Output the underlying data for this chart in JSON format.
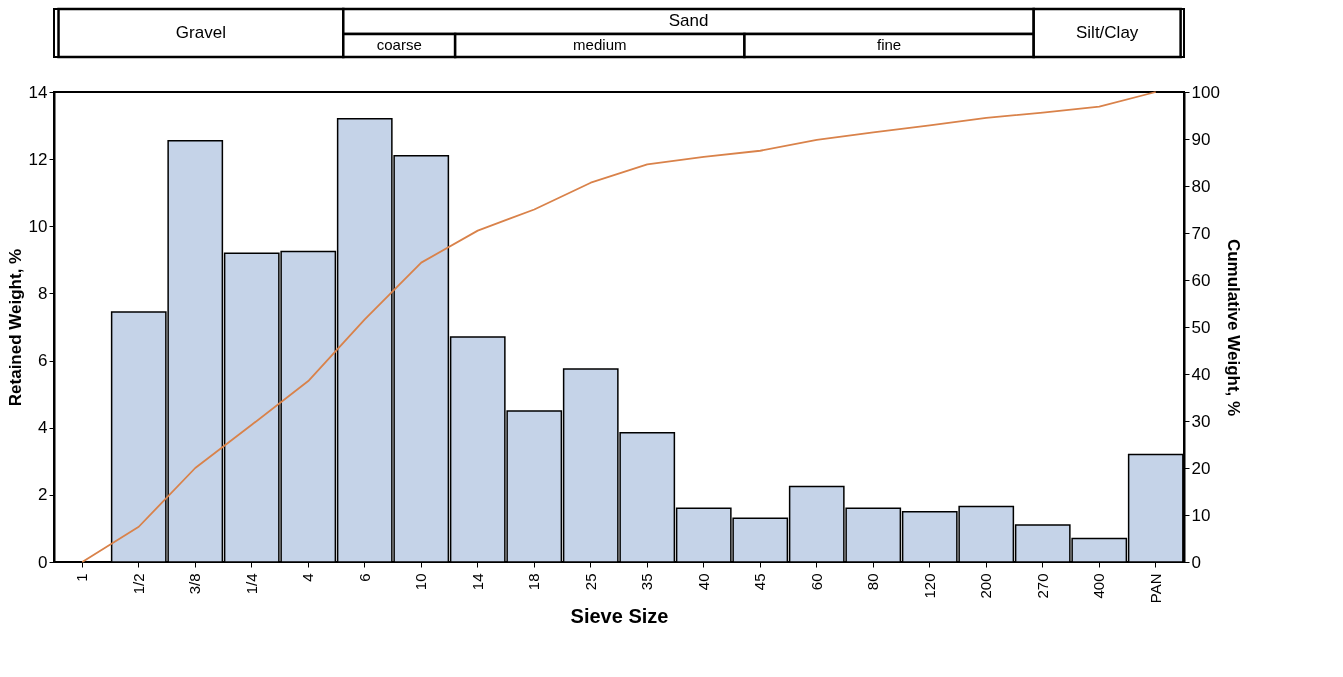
{
  "chart_data": {
    "type": "bar",
    "xlabel": "Sieve Size",
    "ylabel": "Retained Weight, %",
    "y2label": "Cumulative Weight, %",
    "categories": [
      "1",
      "1/2",
      "3/8",
      "1/4",
      "4",
      "6",
      "10",
      "14",
      "18",
      "25",
      "35",
      "40",
      "45",
      "60",
      "80",
      "120",
      "200",
      "270",
      "400",
      "PAN"
    ],
    "series": [
      {
        "color": "#c5d3e8",
        "values": [
          0,
          7.45,
          12.55,
          9.2,
          9.25,
          13.2,
          12.1,
          6.7,
          4.5,
          5.75,
          3.85,
          1.6,
          1.3,
          2.25,
          1.6,
          1.5,
          1.65,
          1.1,
          0.7,
          3.2
        ]
      },
      {
        "type": "line",
        "axis": "y2",
        "color": "#d9824a",
        "values": [
          0,
          7.5,
          20,
          29.2,
          38.5,
          51.6,
          63.7,
          70.5,
          75,
          80.7,
          84.6,
          86.2,
          87.5,
          89.8,
          91.4,
          92.9,
          94.5,
          95.6,
          96.9,
          100
        ]
      }
    ],
    "ylim": [
      0,
      14
    ],
    "yticks": [
      0,
      2,
      4,
      6,
      8,
      10,
      12,
      14
    ],
    "y2lim": [
      0,
      100
    ],
    "y2ticks": [
      0,
      10,
      20,
      30,
      40,
      50,
      60,
      70,
      80,
      90,
      100
    ],
    "annotations": [
      "Gravel",
      "Sand",
      "coarse",
      "medium",
      "fine",
      "Silt/Clay"
    ],
    "grid": false
  }
}
